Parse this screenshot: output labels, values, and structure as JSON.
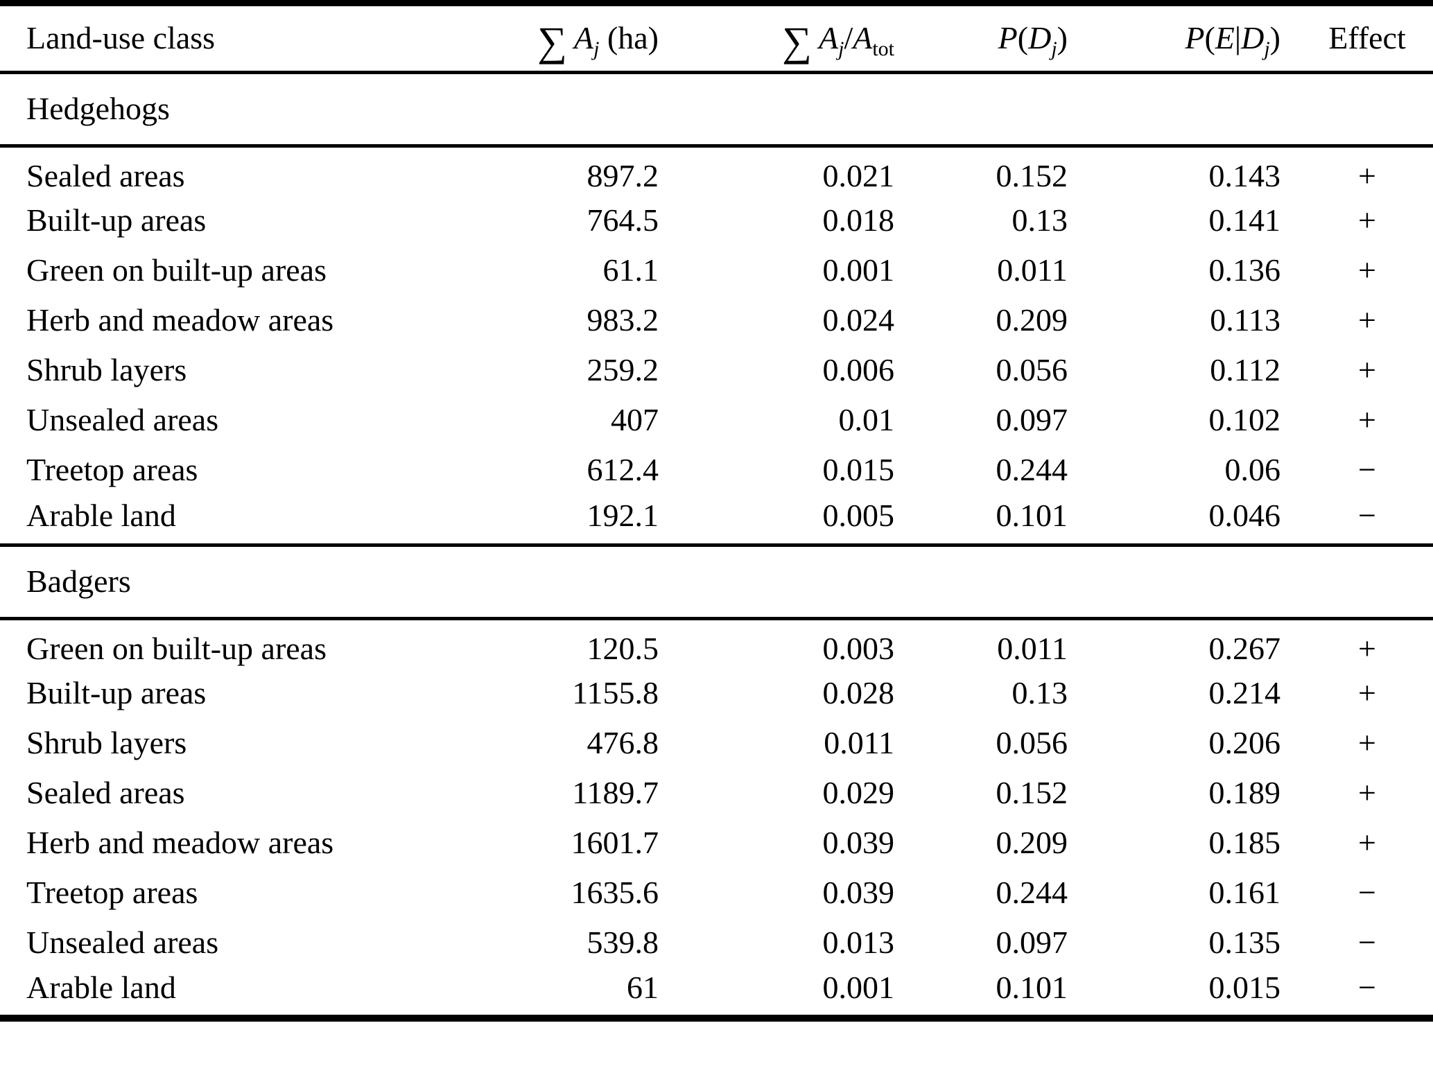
{
  "table": {
    "columns": [
      {
        "id": "land-use-class",
        "field": "land_use",
        "align": "left",
        "parts": [
          {
            "t": "Land-use class",
            "s": "roman"
          }
        ]
      },
      {
        "id": "sum-area-ha",
        "field": "area",
        "align": "right",
        "parts": [
          {
            "t": "∑",
            "s": "sum"
          },
          {
            "t": "A",
            "s": "italic"
          },
          {
            "t": "j",
            "s": "subitalic"
          },
          {
            "t": " (ha)",
            "s": "roman"
          }
        ]
      },
      {
        "id": "area-fraction",
        "field": "fraction",
        "align": "right",
        "parts": [
          {
            "t": "∑",
            "s": "sum"
          },
          {
            "t": "A",
            "s": "italic"
          },
          {
            "t": "j",
            "s": "subitalic"
          },
          {
            "t": "/",
            "s": "roman"
          },
          {
            "t": "A",
            "s": "italic"
          },
          {
            "t": "tot",
            "s": "sub"
          }
        ]
      },
      {
        "id": "p-d",
        "field": "p_d",
        "align": "right",
        "parts": [
          {
            "t": "P",
            "s": "italic"
          },
          {
            "t": "(",
            "s": "roman"
          },
          {
            "t": "D",
            "s": "italic"
          },
          {
            "t": "j",
            "s": "subitalic"
          },
          {
            "t": ")",
            "s": "roman"
          }
        ]
      },
      {
        "id": "p-e-given-d",
        "field": "p_e_d",
        "align": "right",
        "parts": [
          {
            "t": "P",
            "s": "italic"
          },
          {
            "t": "(",
            "s": "roman"
          },
          {
            "t": "E",
            "s": "italic"
          },
          {
            "t": "|",
            "s": "roman"
          },
          {
            "t": "D",
            "s": "italic"
          },
          {
            "t": "j",
            "s": "subitalic"
          },
          {
            "t": ")",
            "s": "roman"
          }
        ]
      },
      {
        "id": "effect",
        "field": "effect",
        "align": "center",
        "parts": [
          {
            "t": "Effect",
            "s": "roman"
          }
        ]
      }
    ],
    "sections": [
      {
        "title": "Hedgehogs",
        "rows": [
          {
            "land_use": "Sealed areas",
            "area": "897.2",
            "fraction": "0.021",
            "p_d": "0.152",
            "p_e_d": "0.143",
            "effect": "+"
          },
          {
            "land_use": "Built-up areas",
            "area": "764.5",
            "fraction": "0.018",
            "p_d": "0.13",
            "p_e_d": "0.141",
            "effect": "+"
          },
          {
            "land_use": "Green on built-up areas",
            "area": "61.1",
            "fraction": "0.001",
            "p_d": "0.011",
            "p_e_d": "0.136",
            "effect": "+"
          },
          {
            "land_use": "Herb and meadow areas",
            "area": "983.2",
            "fraction": "0.024",
            "p_d": "0.209",
            "p_e_d": "0.113",
            "effect": "+"
          },
          {
            "land_use": "Shrub layers",
            "area": "259.2",
            "fraction": "0.006",
            "p_d": "0.056",
            "p_e_d": "0.112",
            "effect": "+"
          },
          {
            "land_use": "Unsealed areas",
            "area": "407",
            "fraction": "0.01",
            "p_d": "0.097",
            "p_e_d": "0.102",
            "effect": "+"
          },
          {
            "land_use": "Treetop areas",
            "area": "612.4",
            "fraction": "0.015",
            "p_d": "0.244",
            "p_e_d": "0.06",
            "effect": "−"
          },
          {
            "land_use": "Arable land",
            "area": "192.1",
            "fraction": "0.005",
            "p_d": "0.101",
            "p_e_d": "0.046",
            "effect": "−"
          }
        ]
      },
      {
        "title": "Badgers",
        "rows": [
          {
            "land_use": "Green on built-up areas",
            "area": "120.5",
            "fraction": "0.003",
            "p_d": "0.011",
            "p_e_d": "0.267",
            "effect": "+"
          },
          {
            "land_use": "Built-up areas",
            "area": "1155.8",
            "fraction": "0.028",
            "p_d": "0.13",
            "p_e_d": "0.214",
            "effect": "+"
          },
          {
            "land_use": "Shrub layers",
            "area": "476.8",
            "fraction": "0.011",
            "p_d": "0.056",
            "p_e_d": "0.206",
            "effect": "+"
          },
          {
            "land_use": "Sealed areas",
            "area": "1189.7",
            "fraction": "0.029",
            "p_d": "0.152",
            "p_e_d": "0.189",
            "effect": "+"
          },
          {
            "land_use": "Herb and meadow areas",
            "area": "1601.7",
            "fraction": "0.039",
            "p_d": "0.209",
            "p_e_d": "0.185",
            "effect": "+"
          },
          {
            "land_use": "Treetop areas",
            "area": "1635.6",
            "fraction": "0.039",
            "p_d": "0.244",
            "p_e_d": "0.161",
            "effect": "−"
          },
          {
            "land_use": "Unsealed areas",
            "area": "539.8",
            "fraction": "0.013",
            "p_d": "0.097",
            "p_e_d": "0.135",
            "effect": "−"
          },
          {
            "land_use": "Arable land",
            "area": "61",
            "fraction": "0.001",
            "p_d": "0.101",
            "p_e_d": "0.015",
            "effect": "−"
          }
        ]
      }
    ]
  }
}
